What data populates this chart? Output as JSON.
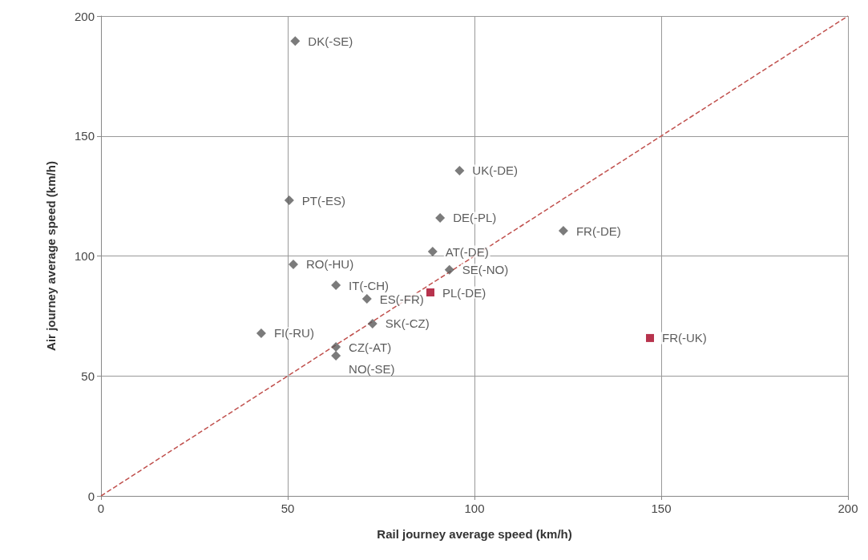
{
  "chart_data": {
    "type": "scatter",
    "xlabel": "Rail journey average speed (km/h)",
    "ylabel": "Air journey average speed (km/h)",
    "xlim": [
      0,
      200
    ],
    "xticks": [
      0,
      50,
      100,
      150,
      200
    ],
    "ylim": [
      0,
      200
    ],
    "yticks": [
      0,
      50,
      100,
      150,
      200
    ],
    "grid": true,
    "series": [
      {
        "color": "#5a5a5a",
        "marker": "diamond",
        "x": [
          52,
          96,
          50.4,
          90.8,
          123.8,
          88.8,
          51.5,
          93.3,
          62.9,
          71.2,
          72.7,
          42.9,
          62.9,
          62.9
        ],
        "values": [
          189.6,
          135.6,
          123.2,
          115.9,
          110.5,
          101.8,
          96.5,
          94.2,
          87.8,
          82.1,
          71.8,
          67.8,
          62.1,
          58.4
        ],
        "value_labels": [
          "DK(-SE)",
          "UK(-DE)",
          "PT(-ES)",
          "DE(-PL)",
          "FR(-DE)",
          "AT(-DE)",
          "RO(-HU)",
          "SE(-NO)",
          "IT(-CH)",
          "ES(-FR)",
          "SK(-CZ)",
          "FI(-RU)",
          "CZ(-AT)",
          "NO(-SE)"
        ]
      },
      {
        "color": "#a50021",
        "marker": "square",
        "x": [
          88.2,
          147
        ],
        "values": [
          84.8,
          65.8
        ],
        "value_labels": [
          "PL(-DE)",
          "FR(-UK)"
        ]
      },
      {
        "type": "line",
        "color": "#c0504d",
        "marker": "none",
        "line_style": "dashed",
        "x": [
          0,
          200
        ],
        "values": [
          0,
          200
        ]
      }
    ]
  }
}
